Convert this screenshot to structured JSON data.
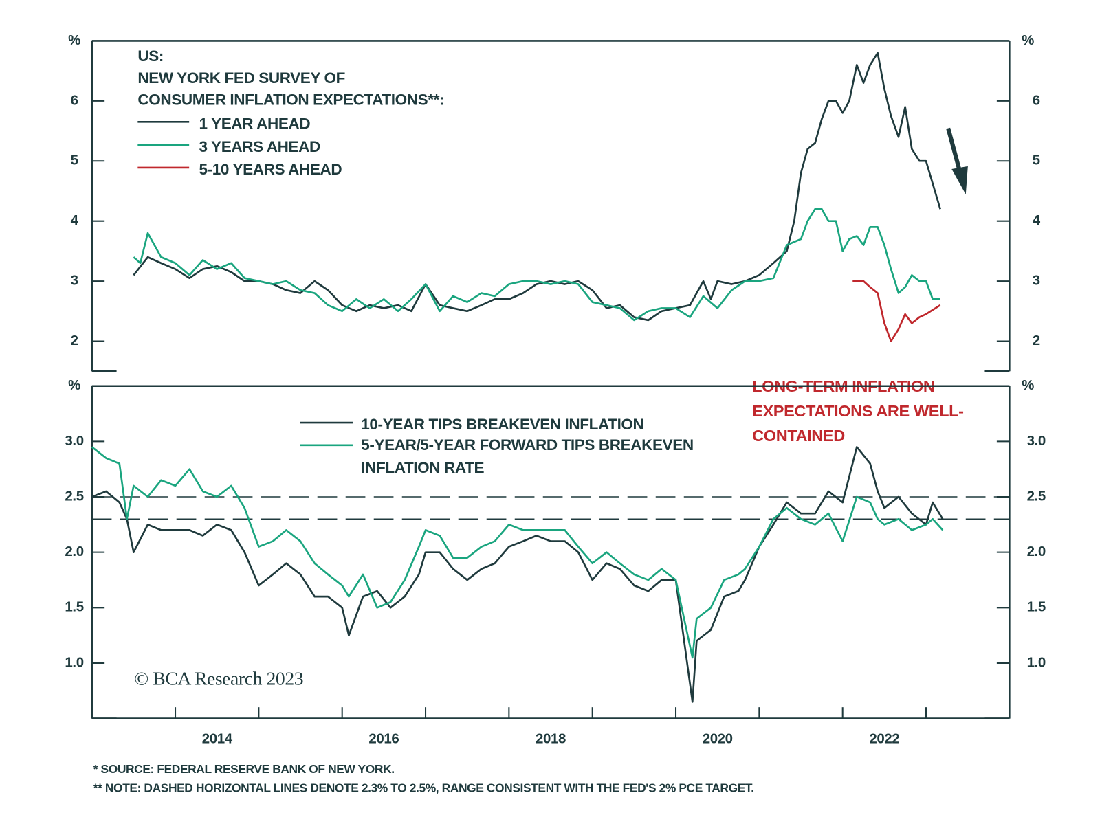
{
  "chart_data": [
    {
      "type": "line",
      "title": [
        "US:",
        "NEW YORK FED SURVEY OF",
        "CONSUMER INFLATION EXPECTATIONS**:"
      ],
      "y_unit": "%",
      "xlim": [
        2013,
        2024
      ],
      "ylim": [
        1.5,
        7
      ],
      "yticks": [
        2,
        3,
        4,
        5,
        6
      ],
      "series": [
        {
          "name": "1 YEAR AHEAD",
          "color": "#1f3a3d",
          "x": [
            2013.5,
            2013.67,
            2013.83,
            2014.0,
            2014.17,
            2014.33,
            2014.5,
            2014.67,
            2014.83,
            2015.0,
            2015.17,
            2015.33,
            2015.5,
            2015.67,
            2015.83,
            2016.0,
            2016.17,
            2016.33,
            2016.5,
            2016.67,
            2016.83,
            2017.0,
            2017.17,
            2017.33,
            2017.5,
            2017.67,
            2017.83,
            2018.0,
            2018.17,
            2018.33,
            2018.5,
            2018.67,
            2018.83,
            2019.0,
            2019.17,
            2019.33,
            2019.5,
            2019.67,
            2019.83,
            2020.0,
            2020.17,
            2020.33,
            2020.42,
            2020.5,
            2020.67,
            2020.83,
            2021.0,
            2021.17,
            2021.33,
            2021.42,
            2021.5,
            2021.58,
            2021.67,
            2021.75,
            2021.83,
            2021.92,
            2022.0,
            2022.08,
            2022.17,
            2022.25,
            2022.33,
            2022.42,
            2022.5,
            2022.58,
            2022.67,
            2022.75,
            2022.83,
            2022.92,
            2023.0,
            2023.17
          ],
          "values": [
            3.1,
            3.4,
            3.3,
            3.2,
            3.05,
            3.2,
            3.25,
            3.15,
            3.0,
            3.0,
            2.95,
            2.85,
            2.8,
            3.0,
            2.85,
            2.6,
            2.5,
            2.6,
            2.55,
            2.6,
            2.5,
            2.95,
            2.6,
            2.55,
            2.5,
            2.6,
            2.7,
            2.7,
            2.8,
            2.95,
            3.0,
            2.95,
            3.0,
            2.85,
            2.55,
            2.6,
            2.4,
            2.35,
            2.5,
            2.55,
            2.6,
            3.0,
            2.7,
            3.0,
            2.95,
            3.0,
            3.1,
            3.3,
            3.5,
            4.0,
            4.8,
            5.2,
            5.3,
            5.7,
            6.0,
            6.0,
            5.8,
            6.0,
            6.6,
            6.3,
            6.6,
            6.8,
            6.2,
            5.75,
            5.4,
            5.9,
            5.2,
            5.0,
            5.0,
            4.2
          ]
        },
        {
          "name": "3 YEARS AHEAD",
          "color": "#1aa57f",
          "x": [
            2013.5,
            2013.58,
            2013.67,
            2013.83,
            2014.0,
            2014.17,
            2014.33,
            2014.5,
            2014.67,
            2014.83,
            2015.0,
            2015.17,
            2015.33,
            2015.5,
            2015.67,
            2015.83,
            2016.0,
            2016.17,
            2016.33,
            2016.5,
            2016.67,
            2016.83,
            2017.0,
            2017.17,
            2017.33,
            2017.5,
            2017.67,
            2017.83,
            2018.0,
            2018.17,
            2018.33,
            2018.5,
            2018.67,
            2018.83,
            2019.0,
            2019.17,
            2019.33,
            2019.5,
            2019.67,
            2019.83,
            2020.0,
            2020.17,
            2020.33,
            2020.5,
            2020.67,
            2020.83,
            2021.0,
            2021.17,
            2021.33,
            2021.5,
            2021.58,
            2021.67,
            2021.75,
            2021.83,
            2021.92,
            2022.0,
            2022.08,
            2022.17,
            2022.25,
            2022.33,
            2022.42,
            2022.5,
            2022.58,
            2022.67,
            2022.75,
            2022.83,
            2022.92,
            2023.0,
            2023.08,
            2023.17
          ],
          "values": [
            3.4,
            3.3,
            3.8,
            3.4,
            3.3,
            3.1,
            3.35,
            3.2,
            3.3,
            3.05,
            3.0,
            2.95,
            3.0,
            2.85,
            2.8,
            2.6,
            2.5,
            2.7,
            2.55,
            2.7,
            2.5,
            2.7,
            2.95,
            2.5,
            2.75,
            2.65,
            2.8,
            2.75,
            2.95,
            3.0,
            3.0,
            2.95,
            3.0,
            2.95,
            2.65,
            2.6,
            2.55,
            2.35,
            2.5,
            2.55,
            2.55,
            2.4,
            2.75,
            2.55,
            2.85,
            3.0,
            3.0,
            3.05,
            3.6,
            3.7,
            4.0,
            4.2,
            4.2,
            4.0,
            4.0,
            3.5,
            3.7,
            3.75,
            3.6,
            3.9,
            3.9,
            3.6,
            3.2,
            2.8,
            2.9,
            3.1,
            3.0,
            3.0,
            2.7,
            2.7
          ]
        },
        {
          "name": "5-10 YEARS AHEAD",
          "color": "#c0282d",
          "x": [
            2022.12,
            2022.17,
            2022.25,
            2022.33,
            2022.42,
            2022.5,
            2022.58,
            2022.67,
            2022.75,
            2022.83,
            2022.92,
            2023.0,
            2023.17
          ],
          "values": [
            3.0,
            3.0,
            3.0,
            2.9,
            2.8,
            2.3,
            2.0,
            2.2,
            2.45,
            2.3,
            2.4,
            2.45,
            2.6
          ]
        }
      ]
    },
    {
      "type": "line",
      "y_unit": "%",
      "xlim": [
        2013,
        2024
      ],
      "ylim": [
        0.5,
        3.5
      ],
      "yticks": [
        {
          "value": 1,
          "label": "1.0"
        },
        1.5,
        {
          "value": 2,
          "label": "2.0"
        },
        2.5,
        {
          "value": 3,
          "label": "3.0"
        }
      ],
      "xticks": [
        {
          "value": 2014,
          "label": "2014"
        },
        {
          "value": 2015,
          "label": null
        },
        {
          "value": 2016,
          "label": "2016"
        },
        {
          "value": 2017,
          "label": null
        },
        {
          "value": 2018,
          "label": "2018"
        },
        {
          "value": 2019,
          "label": null
        },
        {
          "value": 2020,
          "label": "2020"
        },
        {
          "value": 2021,
          "label": null
        },
        {
          "value": 2022,
          "label": "2022"
        },
        {
          "value": 2023,
          "label": null
        }
      ],
      "hlines": [
        2.3,
        2.5
      ],
      "annotation": [
        "LONG-TERM INFLATION",
        "EXPECTATIONS ARE WELL-",
        "CONTAINED"
      ],
      "credit": "© BCA Research 2023",
      "x": [
        2013.0,
        2013.17,
        2013.33,
        2013.42,
        2013.5,
        2013.67,
        2013.83,
        2014.0,
        2014.17,
        2014.33,
        2014.5,
        2014.67,
        2014.83,
        2015.0,
        2015.17,
        2015.33,
        2015.5,
        2015.67,
        2015.83,
        2016.0,
        2016.08,
        2016.25,
        2016.42,
        2016.58,
        2016.75,
        2016.92,
        2017.0,
        2017.17,
        2017.33,
        2017.5,
        2017.67,
        2017.83,
        2018.0,
        2018.17,
        2018.33,
        2018.5,
        2018.67,
        2018.83,
        2019.0,
        2019.17,
        2019.33,
        2019.5,
        2019.67,
        2019.83,
        2020.0,
        2020.2,
        2020.25,
        2020.42,
        2020.58,
        2020.75,
        2020.83,
        2021.0,
        2021.17,
        2021.33,
        2021.5,
        2021.67,
        2021.83,
        2022.0,
        2022.17,
        2022.33,
        2022.42,
        2022.5,
        2022.67,
        2022.83,
        2023.0,
        2023.08,
        2023.2
      ],
      "series": [
        {
          "name": "10-YEAR TIPS BREAKEVEN INFLATION",
          "color": "#1f3a3d",
          "values": [
            2.5,
            2.55,
            2.45,
            2.3,
            2.0,
            2.25,
            2.2,
            2.2,
            2.2,
            2.15,
            2.25,
            2.2,
            2.0,
            1.7,
            1.8,
            1.9,
            1.8,
            1.6,
            1.6,
            1.5,
            1.25,
            1.6,
            1.65,
            1.5,
            1.6,
            1.8,
            2.0,
            2.0,
            1.85,
            1.75,
            1.85,
            1.9,
            2.05,
            2.1,
            2.15,
            2.1,
            2.1,
            2.0,
            1.75,
            1.9,
            1.85,
            1.7,
            1.65,
            1.75,
            1.75,
            0.65,
            1.2,
            1.3,
            1.6,
            1.65,
            1.75,
            2.05,
            2.25,
            2.45,
            2.35,
            2.35,
            2.55,
            2.45,
            2.95,
            2.8,
            2.55,
            2.4,
            2.5,
            2.35,
            2.25,
            2.45,
            2.3
          ]
        },
        {
          "name": "5-YEAR/5-YEAR FORWARD TIPS BREAKEVEN INFLATION RATE",
          "color": "#1aa57f",
          "values": [
            2.95,
            2.85,
            2.8,
            2.3,
            2.6,
            2.5,
            2.65,
            2.6,
            2.75,
            2.55,
            2.5,
            2.6,
            2.4,
            2.05,
            2.1,
            2.2,
            2.1,
            1.9,
            1.8,
            1.7,
            1.6,
            1.8,
            1.5,
            1.55,
            1.75,
            2.05,
            2.2,
            2.15,
            1.95,
            1.95,
            2.05,
            2.1,
            2.25,
            2.2,
            2.2,
            2.2,
            2.2,
            2.05,
            1.9,
            2.0,
            1.9,
            1.8,
            1.75,
            1.85,
            1.75,
            1.05,
            1.4,
            1.5,
            1.75,
            1.8,
            1.85,
            2.05,
            2.3,
            2.4,
            2.3,
            2.25,
            2.35,
            2.1,
            2.5,
            2.45,
            2.3,
            2.25,
            2.3,
            2.2,
            2.25,
            2.3,
            2.2
          ]
        }
      ]
    }
  ],
  "notes": [
    "*  SOURCE: FEDERAL RESERVE BANK OF NEW YORK.",
    "** NOTE: DASHED HORIZONTAL LINES DENOTE 2.3% TO 2.5%, RANGE CONSISTENT WITH THE FED'S 2% PCE TARGET."
  ]
}
